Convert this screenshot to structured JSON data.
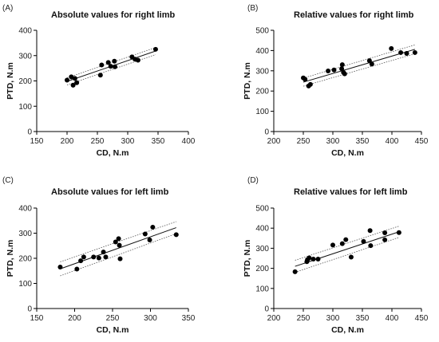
{
  "chart_data": [
    {
      "panel": "(A)",
      "type": "scatter",
      "title": "Absolute values for right limb",
      "xlabel": "CD, N.m",
      "ylabel": "PTD, N.m",
      "xlim": [
        150,
        400
      ],
      "ylim": [
        0,
        400
      ],
      "xticks": [
        150,
        200,
        250,
        300,
        350,
        400
      ],
      "yticks": [
        0,
        100,
        200,
        300,
        400
      ],
      "points": [
        [
          200,
          203
        ],
        [
          207,
          216
        ],
        [
          210,
          183
        ],
        [
          213,
          210
        ],
        [
          216,
          193
        ],
        [
          255,
          223
        ],
        [
          257,
          263
        ],
        [
          268,
          273
        ],
        [
          272,
          258
        ],
        [
          278,
          278
        ],
        [
          279,
          256
        ],
        [
          307,
          295
        ],
        [
          312,
          286
        ],
        [
          317,
          282
        ],
        [
          346,
          325
        ]
      ],
      "fit": {
        "x": [
          200,
          346
        ],
        "y": [
          198,
          318
        ],
        "ci_halfwidth": [
          14,
          14
        ]
      }
    },
    {
      "panel": "(B)",
      "type": "scatter",
      "title": "Relative values for right limb",
      "xlabel": "CD, N.m",
      "ylabel": "PTD, N.m",
      "xlim": [
        200,
        450
      ],
      "ylim": [
        0,
        500
      ],
      "xticks": [
        200,
        250,
        300,
        350,
        400,
        450
      ],
      "yticks": [
        0,
        100,
        200,
        300,
        400,
        500
      ],
      "points": [
        [
          250,
          265
        ],
        [
          253,
          258
        ],
        [
          259,
          225
        ],
        [
          262,
          233
        ],
        [
          292,
          299
        ],
        [
          302,
          304
        ],
        [
          315,
          310
        ],
        [
          316,
          330
        ],
        [
          318,
          292
        ],
        [
          320,
          285
        ],
        [
          362,
          350
        ],
        [
          366,
          333
        ],
        [
          399,
          410
        ],
        [
          415,
          390
        ],
        [
          425,
          386
        ],
        [
          439,
          390
        ]
      ],
      "fit": {
        "x": [
          250,
          439
        ],
        "y": [
          244,
          406
        ],
        "ci_halfwidth": [
          20,
          22
        ]
      }
    },
    {
      "panel": "(C)",
      "type": "scatter",
      "title": "Absolute values for left limb",
      "xlabel": "CD, N.m",
      "ylabel": "PTD, N.m",
      "xlim": [
        150,
        350
      ],
      "ylim": [
        0,
        400
      ],
      "xticks": [
        150,
        200,
        250,
        300,
        350
      ],
      "yticks": [
        0,
        100,
        200,
        300,
        400
      ],
      "points": [
        [
          181,
          165
        ],
        [
          203,
          157
        ],
        [
          208,
          190
        ],
        [
          212,
          205
        ],
        [
          225,
          205
        ],
        [
          232,
          201
        ],
        [
          238,
          225
        ],
        [
          241,
          205
        ],
        [
          254,
          265
        ],
        [
          258,
          278
        ],
        [
          259,
          252
        ],
        [
          260,
          198
        ],
        [
          293,
          297
        ],
        [
          299,
          273
        ],
        [
          303,
          324
        ],
        [
          334,
          294
        ]
      ],
      "fit": {
        "x": [
          181,
          334
        ],
        "y": [
          158,
          322
        ],
        "ci_halfwidth": [
          28,
          24
        ]
      }
    },
    {
      "panel": "(D)",
      "type": "scatter",
      "title": "Relative values for left limb",
      "xlabel": "CD, N.m",
      "ylabel": "PTD, N.m",
      "xlim": [
        200,
        450
      ],
      "ylim": [
        0,
        500
      ],
      "xticks": [
        200,
        250,
        300,
        350,
        400,
        450
      ],
      "yticks": [
        0,
        100,
        200,
        300,
        400,
        500
      ],
      "points": [
        [
          236,
          183
        ],
        [
          256,
          233
        ],
        [
          257,
          243
        ],
        [
          260,
          252
        ],
        [
          267,
          246
        ],
        [
          275,
          246
        ],
        [
          300,
          316
        ],
        [
          316,
          323
        ],
        [
          322,
          343
        ],
        [
          331,
          256
        ],
        [
          352,
          334
        ],
        [
          363,
          388
        ],
        [
          364,
          313
        ],
        [
          388,
          342
        ],
        [
          388,
          377
        ],
        [
          412,
          378
        ]
      ],
      "fit": {
        "x": [
          236,
          412
        ],
        "y": [
          210,
          382
        ],
        "ci_halfwidth": [
          30,
          28
        ]
      }
    }
  ]
}
